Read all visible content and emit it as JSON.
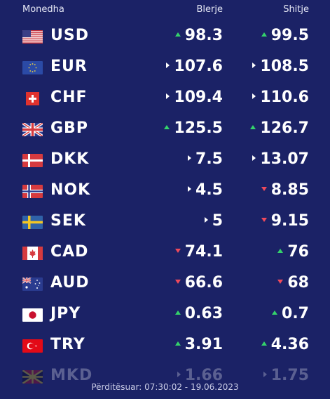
{
  "header": {
    "currency": "Monedha",
    "buy": "Blerje",
    "sell": "Shitje"
  },
  "rows": [
    {
      "code": "USD",
      "flag": "us-flag-icon",
      "buy": "98.3",
      "buy_trend": "up",
      "sell": "99.5",
      "sell_trend": "up"
    },
    {
      "code": "EUR",
      "flag": "eu-flag-icon",
      "buy": "107.6",
      "buy_trend": "same",
      "sell": "108.5",
      "sell_trend": "same"
    },
    {
      "code": "CHF",
      "flag": "ch-flag-icon",
      "buy": "109.4",
      "buy_trend": "same",
      "sell": "110.6",
      "sell_trend": "same"
    },
    {
      "code": "GBP",
      "flag": "gb-flag-icon",
      "buy": "125.5",
      "buy_trend": "up",
      "sell": "126.7",
      "sell_trend": "up"
    },
    {
      "code": "DKK",
      "flag": "dk-flag-icon",
      "buy": "7.5",
      "buy_trend": "same",
      "sell": "13.07",
      "sell_trend": "same"
    },
    {
      "code": "NOK",
      "flag": "no-flag-icon",
      "buy": "4.5",
      "buy_trend": "same",
      "sell": "8.85",
      "sell_trend": "down"
    },
    {
      "code": "SEK",
      "flag": "se-flag-icon",
      "buy": "5",
      "buy_trend": "same",
      "sell": "9.15",
      "sell_trend": "down"
    },
    {
      "code": "CAD",
      "flag": "ca-flag-icon",
      "buy": "74.1",
      "buy_trend": "down",
      "sell": "76",
      "sell_trend": "up"
    },
    {
      "code": "AUD",
      "flag": "au-flag-icon",
      "buy": "66.6",
      "buy_trend": "down",
      "sell": "68",
      "sell_trend": "down"
    },
    {
      "code": "JPY",
      "flag": "jp-flag-icon",
      "buy": "0.63",
      "buy_trend": "up",
      "sell": "0.7",
      "sell_trend": "up"
    },
    {
      "code": "TRY",
      "flag": "tr-flag-icon",
      "buy": "3.91",
      "buy_trend": "up",
      "sell": "4.36",
      "sell_trend": "up"
    },
    {
      "code": "MKD",
      "flag": "mk-flag-icon",
      "buy": "1.66",
      "buy_trend": "same",
      "sell": "1.75",
      "sell_trend": "same"
    }
  ],
  "footer": {
    "updated": "Përditësuar: 07:30:02 - 19.06.2023"
  },
  "colors": {
    "background": "#1b2266",
    "up": "#34d36b",
    "down": "#f04a5b",
    "text": "#ffffff"
  }
}
